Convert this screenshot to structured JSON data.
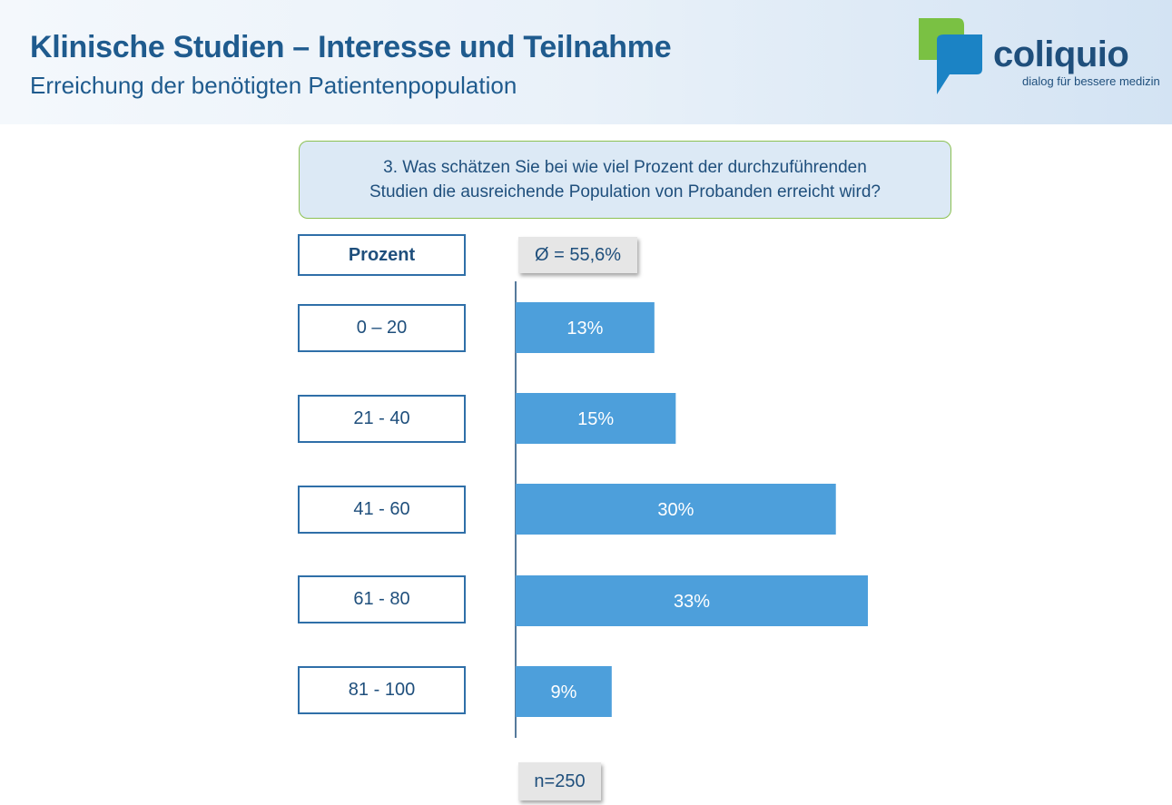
{
  "header": {
    "title": "Klinische Studien – Interesse und Teilnahme",
    "subtitle": "Erreichung der benötigten Patientenpopulation"
  },
  "logo": {
    "wordmark": "coliquio",
    "tagline": "dialog für bessere medizin",
    "colors": {
      "green": "#7ac143",
      "blue": "#1b83c5",
      "text": "#1f4f7c"
    }
  },
  "question": {
    "line1": "3. Was schätzen Sie bei wie viel Prozent der durchzuführenden",
    "line2": "Studien die ausreichende  Population von Probanden erreicht wird?"
  },
  "average_label": "Ø = 55,6%",
  "sample_label": "n=250",
  "chart_data": {
    "type": "bar",
    "orientation": "horizontal",
    "category_header": "Prozent",
    "categories": [
      "0 – 20",
      "21 - 40",
      "41 - 60",
      "61 - 80",
      "81 - 100"
    ],
    "values": [
      13,
      15,
      30,
      33,
      9
    ],
    "data_labels": [
      "13%",
      "15%",
      "30%",
      "33%",
      "9%"
    ],
    "xlim": [
      0,
      33
    ],
    "grid": false,
    "bar_color": "#4d9fdb",
    "label_color": "#ffffff"
  }
}
